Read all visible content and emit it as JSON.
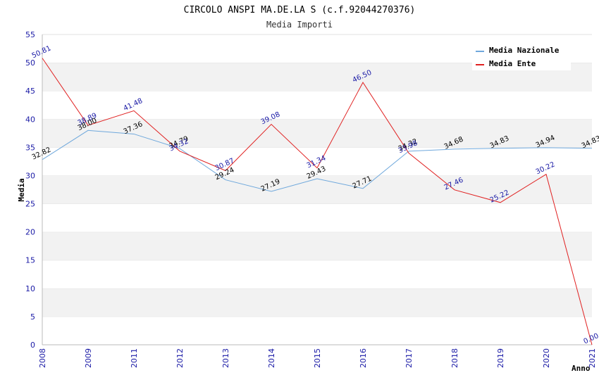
{
  "chart_data": {
    "type": "line",
    "title": "CIRCOLO ANSPI MA.DE.LA S (c.f.92044270376)",
    "subtitle": "Media Importi",
    "xlabel": "Anno",
    "ylabel": "Media",
    "ylim": [
      0,
      55
    ],
    "yticks": [
      "0",
      "5",
      "10",
      "15",
      "20",
      "25",
      "30",
      "35",
      "40",
      "45",
      "50",
      "55"
    ],
    "categories": [
      "2008",
      "2009",
      "2011",
      "2012",
      "2013",
      "2014",
      "2015",
      "2016",
      "2017",
      "2018",
      "2019",
      "2020",
      "2021"
    ],
    "legend_position": "top-right",
    "series": [
      {
        "name": "Media Nazionale",
        "color": "#6fa8dc",
        "values": [
          32.82,
          38.0,
          37.36,
          34.79,
          29.24,
          27.19,
          29.43,
          27.71,
          34.32,
          34.68,
          34.83,
          34.94,
          34.83
        ],
        "labels": [
          "32.82",
          "38.00",
          "37.36",
          "34.79",
          "29.24",
          "27.19",
          "29.43",
          "27.71",
          "34.32",
          "34.68",
          "34.83",
          "34.94",
          "34.83"
        ]
      },
      {
        "name": "Media Ente",
        "color": "#e02020",
        "values": [
          50.81,
          38.89,
          41.48,
          34.32,
          30.87,
          39.08,
          31.34,
          46.5,
          33.98,
          27.46,
          25.22,
          30.22,
          0.0
        ],
        "labels": [
          "50.81",
          "38.89",
          "41.48",
          "34.32",
          "30.87",
          "39.08",
          "31.34",
          "46.50",
          "33.98",
          "27.46",
          "25.22",
          "30.22",
          "0.00"
        ]
      }
    ]
  }
}
